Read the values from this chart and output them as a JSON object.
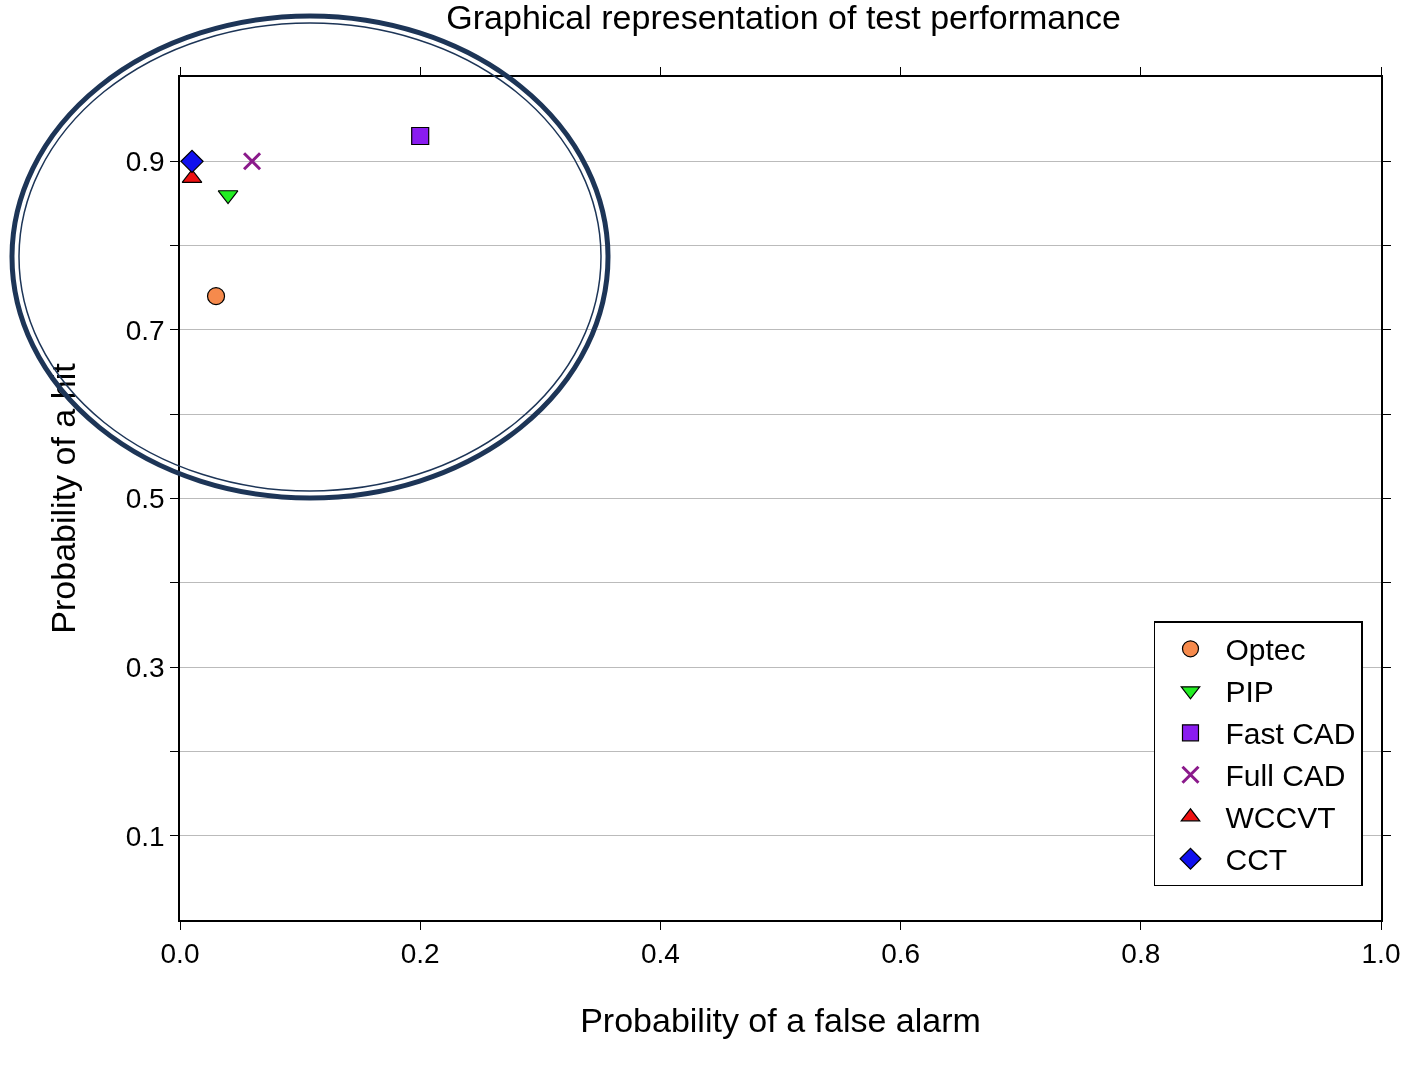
{
  "chart_data": {
    "type": "scatter",
    "title": "Graphical representation of test performance",
    "xlabel": "Probability of a false alarm",
    "ylabel": "Probability of a hit",
    "xlim": [
      0,
      1
    ],
    "xticks": [
      {
        "value": 0,
        "label": "0.0"
      },
      0.2,
      0.4,
      0.6,
      0.8,
      {
        "value": 1,
        "label": "1.0"
      }
    ],
    "ylim": [
      0,
      1
    ],
    "yticks": [
      0.1,
      {
        "value": 0.2,
        "label": null
      },
      0.3,
      {
        "value": 0.4,
        "label": null
      },
      0.5,
      {
        "value": 0.6,
        "label": null
      },
      0.7,
      {
        "value": 0.8,
        "label": null
      },
      0.9
    ],
    "grid": "y",
    "legend": "bottom right",
    "series": [
      {
        "name": "Optec",
        "color": "#f68a4c",
        "marker": "circle",
        "x": [
          0.03
        ],
        "values": [
          0.74
        ]
      },
      {
        "name": "PIP",
        "color": "#22ee22",
        "marker": "triangle-down",
        "x": [
          0.04
        ],
        "values": [
          0.86
        ]
      },
      {
        "name": "Fast CAD",
        "color": "#8a1cf0",
        "marker": "square",
        "x": [
          0.2
        ],
        "values": [
          0.93
        ]
      },
      {
        "name": "Full CAD",
        "color": "#8b1a8b",
        "marker": "cross",
        "x": [
          0.06
        ],
        "values": [
          0.9
        ]
      },
      {
        "name": "WCCVT",
        "color": "#ee1111",
        "marker": "triangle",
        "x": [
          0.01
        ],
        "values": [
          0.88
        ]
      },
      {
        "name": "CCT",
        "color": "#1010ee",
        "marker": "diamond",
        "x": [
          0.01
        ],
        "values": [
          0.9
        ]
      }
    ]
  }
}
